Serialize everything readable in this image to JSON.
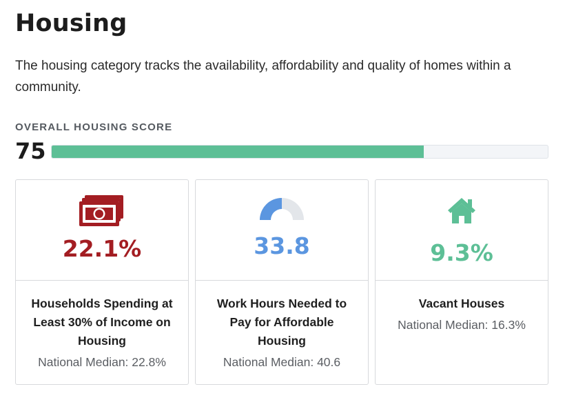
{
  "header": {
    "title": "Housing",
    "description": "The housing category tracks the availability, affordability and quality of homes within a community."
  },
  "overall": {
    "label": "OVERALL HOUSING SCORE",
    "score": "75",
    "progress_percent": 75,
    "bar_color": "#5dbf96"
  },
  "cards": [
    {
      "icon": "money-bills-icon",
      "value": "22.1%",
      "value_color": "#a31d22",
      "name": "Households Spending at Least 30% of Income on Housing",
      "median": "National Median: 22.8%"
    },
    {
      "icon": "gauge-icon",
      "value": "33.8",
      "value_color": "#5b96e0",
      "name": "Work Hours Needed to Pay for Affordable Housing",
      "median": "National Median: 40.6"
    },
    {
      "icon": "house-icon",
      "value": "9.3%",
      "value_color": "#5dbf96",
      "name": "Vacant Houses",
      "median": "National Median: 16.3%"
    }
  ]
}
